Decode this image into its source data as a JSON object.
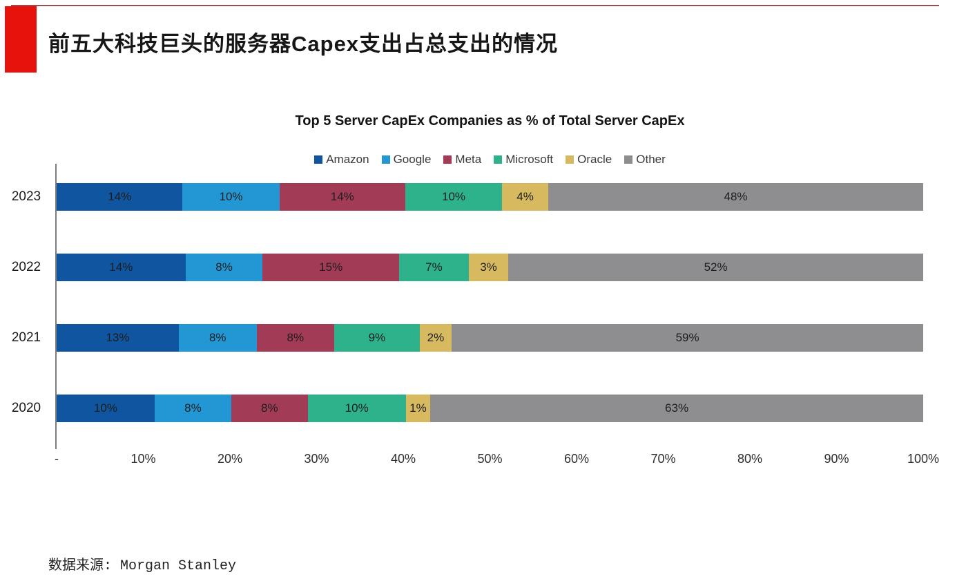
{
  "header": {
    "title": "前五大科技巨头的服务器Capex支出占总支出的情况",
    "accent_color": "#e8120d",
    "rule_color": "#9b4b4b"
  },
  "chart_data": {
    "type": "bar",
    "variant": "horizontal-stacked",
    "title": "Top 5 Server CapEx Companies as % of Total Server CapEx",
    "categories": [
      "2023",
      "2022",
      "2021",
      "2020"
    ],
    "series": [
      {
        "name": "Amazon",
        "color": "#10559f",
        "values": [
          14,
          14,
          13,
          10
        ]
      },
      {
        "name": "Google",
        "color": "#2397d4",
        "values": [
          10,
          8,
          8,
          8
        ]
      },
      {
        "name": "Meta",
        "color": "#a23b56",
        "values": [
          14,
          15,
          8,
          8
        ]
      },
      {
        "name": "Microsoft",
        "color": "#2eb28c",
        "values": [
          10,
          7,
          9,
          10
        ]
      },
      {
        "name": "Oracle",
        "color": "#d7ba60",
        "values": [
          4,
          3,
          2,
          1
        ]
      },
      {
        "name": "Other",
        "color": "#8e8e91",
        "values": [
          48,
          52,
          59,
          63
        ]
      }
    ],
    "x_ticks": [
      "-",
      "10%",
      "20%",
      "30%",
      "40%",
      "50%",
      "60%",
      "70%",
      "80%",
      "90%",
      "100%"
    ],
    "xlim": [
      0,
      100
    ],
    "legend_position": "top",
    "value_suffix": "%",
    "grid": false
  },
  "footer": {
    "source": "数据来源: Morgan Stanley"
  }
}
